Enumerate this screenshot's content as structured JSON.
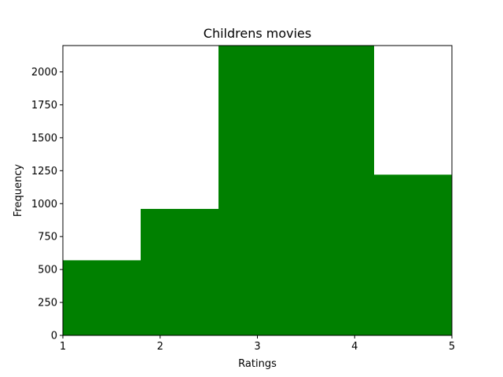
{
  "chart_data": {
    "type": "bar",
    "title": "Childrens movies",
    "xlabel": "Ratings",
    "ylabel": "Frequency",
    "bar_color": "#008000",
    "xlim": [
      1,
      5
    ],
    "ylim": [
      0,
      2200
    ],
    "xticks": [
      1,
      2,
      3,
      4,
      5
    ],
    "yticks": [
      0,
      250,
      500,
      750,
      1000,
      1250,
      1500,
      1750,
      2000
    ],
    "bins": [
      {
        "x0": 1.0,
        "x1": 1.8,
        "value": 570
      },
      {
        "x0": 1.8,
        "x1": 2.6,
        "value": 960
      },
      {
        "x0": 2.6,
        "x1": 3.4,
        "value": 2200
      },
      {
        "x0": 3.4,
        "x1": 4.2,
        "value": 2200
      },
      {
        "x0": 4.2,
        "x1": 5.0,
        "value": 1220
      }
    ],
    "grid": false,
    "legend": false
  }
}
